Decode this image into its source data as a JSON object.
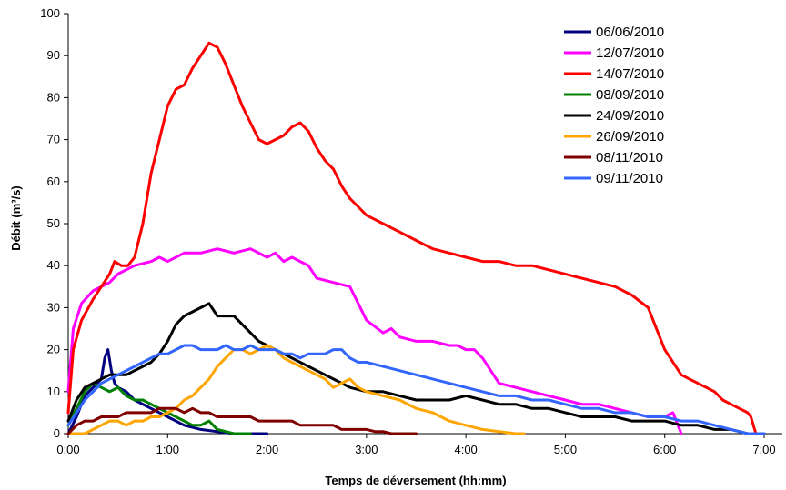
{
  "chart_data": {
    "type": "line",
    "xlabel": "Temps de déversement (hh:mm)",
    "ylabel": "Débit (m³/s)",
    "xlim": [
      0,
      420
    ],
    "ylim": [
      0,
      100
    ],
    "x_ticks": [
      {
        "value": 0,
        "label": "0:00"
      },
      {
        "value": 60,
        "label": "1:00"
      },
      {
        "value": 120,
        "label": "2:00"
      },
      {
        "value": 180,
        "label": "3:00"
      },
      {
        "value": 240,
        "label": "4:00"
      },
      {
        "value": 300,
        "label": "5:00"
      },
      {
        "value": 360,
        "label": "6:00"
      },
      {
        "value": 420,
        "label": "7:00"
      }
    ],
    "y_ticks": [
      0,
      10,
      20,
      30,
      40,
      50,
      60,
      70,
      80,
      90,
      100
    ],
    "grid": false,
    "legend_position": "top-right",
    "series": [
      {
        "name": "06/06/2010",
        "color": "#000080",
        "x": [
          0,
          5,
          10,
          15,
          20,
          22,
          24,
          26,
          28,
          30,
          35,
          40,
          50,
          60,
          70,
          80,
          90,
          100,
          110,
          120
        ],
        "y": [
          0,
          4,
          9,
          11,
          13,
          18,
          20,
          15,
          12,
          11,
          10,
          8,
          6,
          4,
          2,
          1,
          0.5,
          0,
          0,
          0
        ]
      },
      {
        "name": "12/07/2010",
        "color": "#ff00ff",
        "x": [
          0,
          3,
          8,
          15,
          20,
          25,
          30,
          40,
          50,
          55,
          60,
          70,
          80,
          90,
          100,
          110,
          120,
          125,
          130,
          135,
          140,
          145,
          150,
          160,
          170,
          175,
          180,
          190,
          195,
          200,
          210,
          220,
          230,
          235,
          240,
          245,
          250,
          255,
          260,
          270,
          280,
          290,
          300,
          310,
          320,
          330,
          340,
          350,
          360,
          365,
          370
        ],
        "y": [
          10,
          25,
          31,
          34,
          35,
          36,
          38,
          40,
          41,
          42,
          41,
          43,
          43,
          44,
          43,
          44,
          42,
          43,
          41,
          42,
          41,
          40,
          37,
          36,
          35,
          31,
          27,
          24,
          25,
          23,
          22,
          22,
          21,
          21,
          20,
          20,
          18,
          15,
          12,
          11,
          10,
          9,
          8,
          7,
          7,
          6,
          5,
          4,
          4,
          5,
          0
        ]
      },
      {
        "name": "14/07/2010",
        "color": "#ff0000",
        "x": [
          0,
          3,
          8,
          15,
          20,
          25,
          28,
          32,
          36,
          40,
          45,
          50,
          55,
          60,
          65,
          70,
          75,
          80,
          85,
          90,
          95,
          100,
          105,
          110,
          115,
          120,
          125,
          130,
          135,
          140,
          145,
          150,
          155,
          160,
          165,
          170,
          175,
          180,
          190,
          200,
          210,
          220,
          230,
          240,
          250,
          260,
          270,
          280,
          290,
          300,
          310,
          320,
          330,
          340,
          350,
          360,
          370,
          380,
          390,
          395,
          400,
          405,
          410,
          412,
          415
        ],
        "y": [
          5,
          20,
          27,
          32,
          35,
          38,
          41,
          40,
          40,
          42,
          50,
          62,
          70,
          78,
          82,
          83,
          87,
          90,
          93,
          92,
          88,
          83,
          78,
          74,
          70,
          69,
          70,
          71,
          73,
          74,
          72,
          68,
          65,
          63,
          59,
          56,
          54,
          52,
          50,
          48,
          46,
          44,
          43,
          42,
          41,
          41,
          40,
          40,
          39,
          38,
          37,
          36,
          35,
          33,
          30,
          20,
          14,
          12,
          10,
          8,
          7,
          6,
          5,
          4,
          0
        ]
      },
      {
        "name": "08/09/2010",
        "color": "#008000",
        "x": [
          0,
          5,
          10,
          15,
          20,
          25,
          30,
          35,
          40,
          45,
          50,
          55,
          60,
          65,
          70,
          75,
          80,
          85,
          90,
          95,
          100,
          110
        ],
        "y": [
          2,
          6,
          10,
          12,
          11,
          10,
          11,
          9,
          8,
          8,
          7,
          6,
          5,
          4,
          3,
          2,
          2,
          3,
          1,
          0.5,
          0,
          0
        ]
      },
      {
        "name": "24/09/2010",
        "color": "#000000",
        "x": [
          0,
          5,
          10,
          15,
          20,
          25,
          30,
          35,
          40,
          45,
          50,
          55,
          60,
          65,
          70,
          75,
          80,
          85,
          90,
          95,
          100,
          105,
          110,
          115,
          120,
          130,
          140,
          150,
          160,
          170,
          180,
          190,
          200,
          210,
          220,
          230,
          240,
          250,
          260,
          270,
          280,
          290,
          300,
          310,
          320,
          330,
          340,
          350,
          360,
          370,
          380,
          390,
          400,
          405,
          410,
          420
        ],
        "y": [
          3,
          8,
          11,
          12,
          13,
          14,
          14,
          14,
          15,
          16,
          17,
          19,
          22,
          26,
          28,
          29,
          30,
          31,
          28,
          28,
          28,
          26,
          24,
          22,
          21,
          19,
          17,
          15,
          13,
          11,
          10,
          10,
          9,
          8,
          8,
          8,
          9,
          8,
          7,
          7,
          6,
          6,
          5,
          4,
          4,
          4,
          3,
          3,
          3,
          2,
          2,
          1,
          1,
          0.5,
          0,
          0
        ]
      },
      {
        "name": "26/09/2010",
        "color": "#ffa500",
        "x": [
          0,
          10,
          15,
          20,
          25,
          30,
          35,
          40,
          45,
          50,
          55,
          60,
          65,
          70,
          75,
          80,
          85,
          90,
          95,
          100,
          105,
          110,
          115,
          120,
          125,
          130,
          135,
          140,
          145,
          150,
          155,
          160,
          165,
          170,
          175,
          180,
          190,
          200,
          210,
          220,
          230,
          240,
          250,
          260,
          270,
          275
        ],
        "y": [
          0,
          0,
          1,
          2,
          3,
          3,
          2,
          3,
          3,
          4,
          4,
          5,
          6,
          8,
          9,
          11,
          13,
          16,
          18,
          20,
          20,
          19,
          20,
          21,
          20,
          18,
          17,
          16,
          15,
          14,
          13,
          11,
          12,
          13,
          11,
          10,
          9,
          8,
          6,
          5,
          3,
          2,
          1,
          0.5,
          0,
          0
        ]
      },
      {
        "name": "08/11/2010",
        "color": "#800000",
        "x": [
          0,
          5,
          10,
          15,
          20,
          25,
          30,
          35,
          40,
          45,
          50,
          55,
          60,
          65,
          70,
          75,
          80,
          85,
          90,
          95,
          100,
          105,
          110,
          115,
          120,
          125,
          130,
          135,
          140,
          145,
          150,
          155,
          160,
          165,
          170,
          175,
          180,
          185,
          190,
          195,
          200,
          210
        ],
        "y": [
          0,
          2,
          3,
          3,
          4,
          4,
          4,
          5,
          5,
          5,
          5,
          6,
          6,
          6,
          5,
          6,
          5,
          5,
          4,
          4,
          4,
          4,
          4,
          3,
          3,
          3,
          3,
          3,
          2,
          2,
          2,
          2,
          2,
          1,
          1,
          1,
          1,
          0.5,
          0.5,
          0,
          0,
          0
        ]
      },
      {
        "name": "09/11/2010",
        "color": "#3366ff",
        "x": [
          0,
          5,
          10,
          15,
          20,
          25,
          30,
          35,
          40,
          45,
          50,
          55,
          60,
          65,
          70,
          75,
          80,
          85,
          90,
          95,
          100,
          105,
          110,
          115,
          120,
          125,
          130,
          135,
          140,
          145,
          150,
          155,
          160,
          165,
          170,
          175,
          180,
          190,
          200,
          210,
          220,
          230,
          240,
          250,
          260,
          270,
          280,
          290,
          300,
          310,
          320,
          330,
          340,
          350,
          360,
          370,
          380,
          390,
          400,
          410,
          420
        ],
        "y": [
          2,
          5,
          8,
          10,
          12,
          13,
          14,
          15,
          16,
          17,
          18,
          19,
          19,
          20,
          21,
          21,
          20,
          20,
          20,
          21,
          20,
          20,
          21,
          20,
          20,
          20,
          19,
          19,
          18,
          19,
          19,
          19,
          20,
          20,
          18,
          17,
          17,
          16,
          15,
          14,
          13,
          12,
          11,
          10,
          9,
          9,
          8,
          8,
          7,
          6,
          6,
          5,
          5,
          4,
          4,
          3,
          3,
          2,
          1,
          0,
          0
        ]
      }
    ]
  }
}
